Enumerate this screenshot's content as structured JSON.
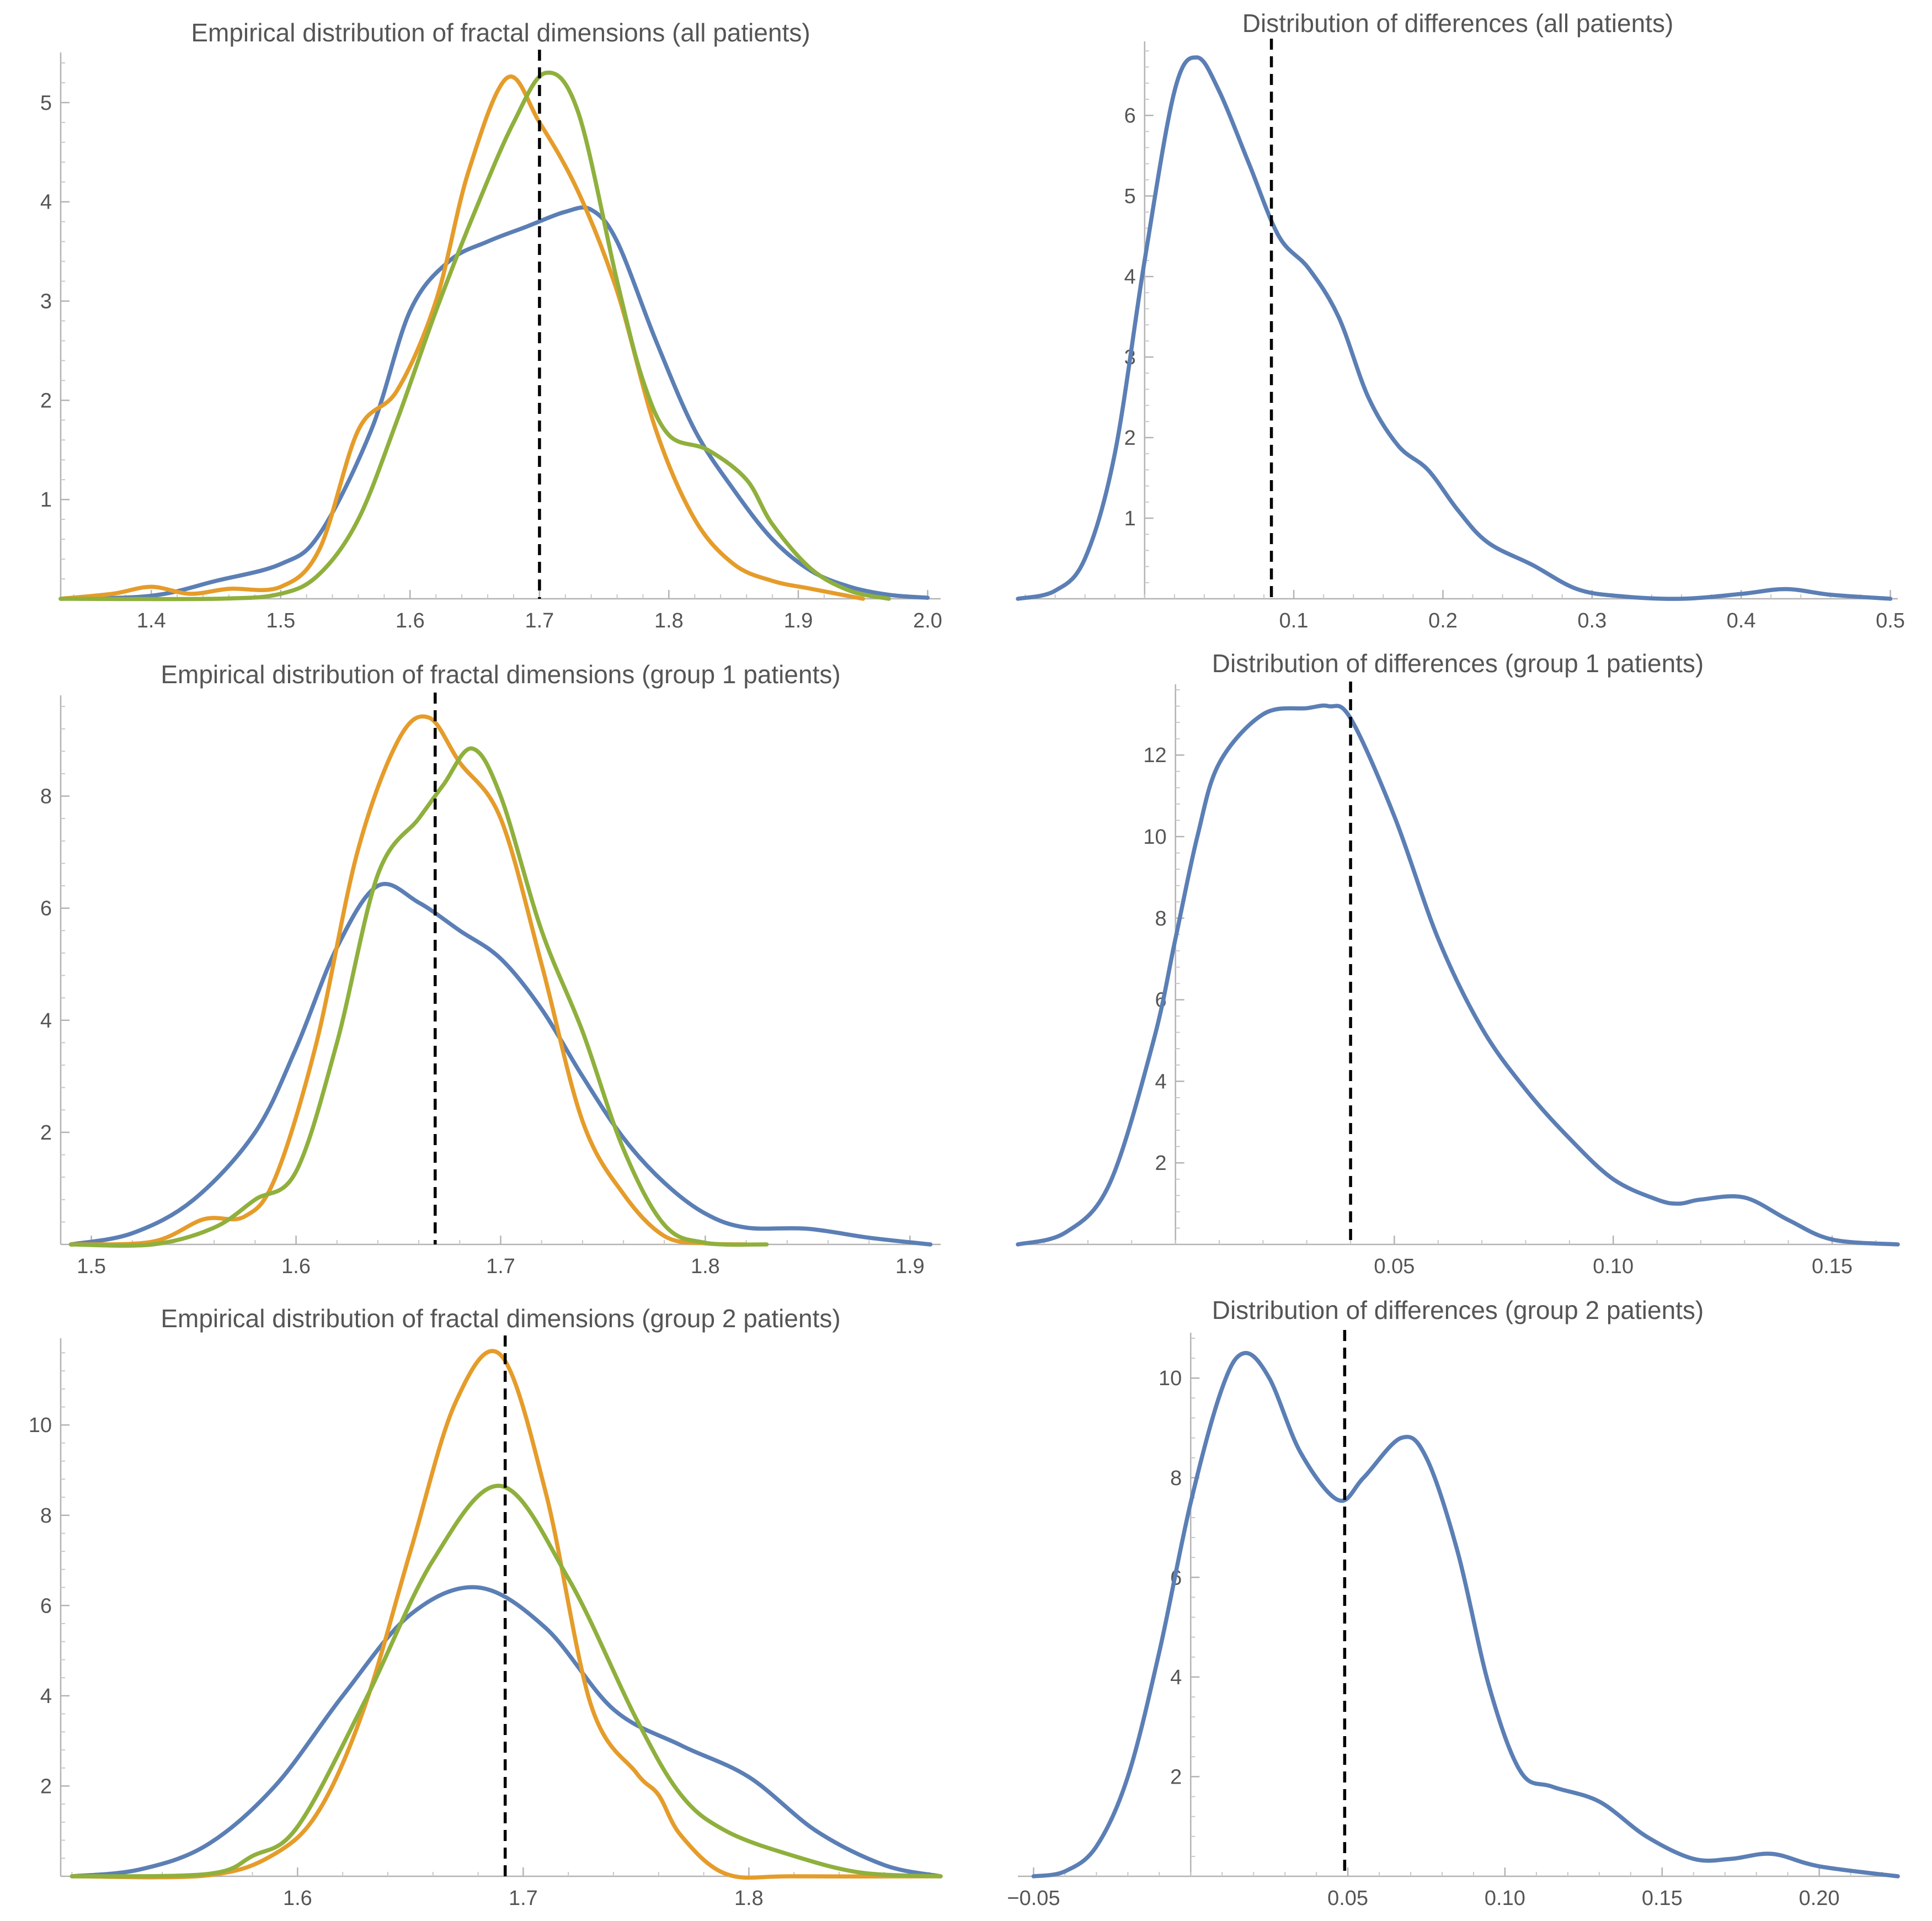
{
  "colors": {
    "blue": "#5b7fb5",
    "orange": "#e59c2a",
    "green": "#8fb03d",
    "reference": "#000000",
    "text": "#555555",
    "axis": "#b3b3b3"
  },
  "chart_data": [
    {
      "type": "line",
      "subtype": "density",
      "title": "Empirical distribution of fractal dimensions (all patients)",
      "xlabel": "",
      "ylabel": "",
      "xlim": [
        1.33,
        2.01
      ],
      "ylim": [
        0,
        5.45
      ],
      "x_ticks": [
        1.4,
        1.5,
        1.6,
        1.7,
        1.8,
        1.9,
        2.0
      ],
      "x_tick_labels": [
        "1.4",
        "1.5",
        "1.6",
        "1.7",
        "1.8",
        "1.9",
        "2.0"
      ],
      "y_ticks": [
        1,
        2,
        3,
        4,
        5
      ],
      "y_tick_labels": [
        "1",
        "2",
        "3",
        "4",
        "5"
      ],
      "reference_line": 1.7,
      "series": [
        {
          "name": "blue",
          "color": "blue",
          "x": [
            1.33,
            1.4,
            1.45,
            1.5,
            1.53,
            1.57,
            1.6,
            1.63,
            1.66,
            1.69,
            1.72,
            1.74,
            1.76,
            1.79,
            1.82,
            1.85,
            1.88,
            1.91,
            1.94,
            1.97,
            2.0
          ],
          "y": [
            0,
            0.03,
            0.18,
            0.35,
            0.65,
            1.7,
            2.9,
            3.4,
            3.6,
            3.75,
            3.9,
            3.92,
            3.6,
            2.6,
            1.7,
            1.1,
            0.6,
            0.28,
            0.12,
            0.04,
            0.01
          ]
        },
        {
          "name": "orange",
          "color": "orange",
          "x": [
            1.33,
            1.37,
            1.4,
            1.43,
            1.46,
            1.5,
            1.53,
            1.56,
            1.59,
            1.62,
            1.645,
            1.675,
            1.7,
            1.73,
            1.76,
            1.79,
            1.82,
            1.85,
            1.88,
            1.91,
            1.95
          ],
          "y": [
            0,
            0.05,
            0.12,
            0.05,
            0.1,
            0.12,
            0.5,
            1.7,
            2.1,
            3.0,
            4.3,
            5.25,
            4.8,
            4.1,
            3.1,
            1.7,
            0.8,
            0.35,
            0.18,
            0.1,
            0
          ]
        },
        {
          "name": "green",
          "color": "green",
          "x": [
            1.33,
            1.45,
            1.5,
            1.53,
            1.56,
            1.59,
            1.62,
            1.65,
            1.68,
            1.705,
            1.73,
            1.76,
            1.78,
            1.8,
            1.83,
            1.86,
            1.88,
            1.91,
            1.94,
            1.97
          ],
          "y": [
            0,
            0,
            0.05,
            0.25,
            0.8,
            1.8,
            2.9,
            3.9,
            4.8,
            5.3,
            4.9,
            3.2,
            2.2,
            1.65,
            1.5,
            1.2,
            0.75,
            0.3,
            0.08,
            0
          ]
        }
      ]
    },
    {
      "type": "line",
      "subtype": "density",
      "title": "Distribution of differences (all patients)",
      "xlabel": "",
      "ylabel": "",
      "xlim": [
        -0.085,
        0.505
      ],
      "ylim": [
        0,
        6.85
      ],
      "x_ticks": [
        0.1,
        0.2,
        0.3,
        0.4,
        0.5
      ],
      "x_tick_labels": [
        "0.1",
        "0.2",
        "0.3",
        "0.4",
        "0.5"
      ],
      "y_ticks": [
        1,
        2,
        3,
        4,
        5,
        6
      ],
      "y_tick_labels": [
        "1",
        "2",
        "3",
        "4",
        "5",
        "6"
      ],
      "reference_line": 0.085,
      "series": [
        {
          "name": "blue",
          "color": "blue",
          "x": [
            -0.085,
            -0.06,
            -0.04,
            -0.02,
            0.0,
            0.02,
            0.035,
            0.05,
            0.07,
            0.09,
            0.11,
            0.13,
            0.15,
            0.17,
            0.19,
            0.21,
            0.23,
            0.26,
            0.29,
            0.32,
            0.36,
            0.4,
            0.43,
            0.46,
            0.5
          ],
          "y": [
            0,
            0.1,
            0.5,
            1.8,
            4.2,
            6.3,
            6.72,
            6.3,
            5.4,
            4.5,
            4.1,
            3.5,
            2.5,
            1.9,
            1.6,
            1.1,
            0.7,
            0.42,
            0.12,
            0.03,
            0.0,
            0.06,
            0.12,
            0.05,
            0
          ]
        }
      ]
    },
    {
      "type": "line",
      "subtype": "density",
      "title": "Empirical distribution of fractal dimensions (group 1 patients)",
      "xlabel": "",
      "ylabel": "",
      "xlim": [
        1.485,
        1.915
      ],
      "ylim": [
        0,
        9.7
      ],
      "x_ticks": [
        1.5,
        1.6,
        1.7,
        1.8,
        1.9
      ],
      "x_tick_labels": [
        "1.5",
        "1.6",
        "1.7",
        "1.8",
        "1.9"
      ],
      "y_ticks": [
        2,
        4,
        6,
        8
      ],
      "y_tick_labels": [
        "2",
        "4",
        "6",
        "8"
      ],
      "reference_line": 1.668,
      "series": [
        {
          "name": "blue",
          "color": "blue",
          "x": [
            1.49,
            1.52,
            1.55,
            1.58,
            1.6,
            1.62,
            1.64,
            1.66,
            1.68,
            1.7,
            1.72,
            1.74,
            1.76,
            1.78,
            1.8,
            1.82,
            1.85,
            1.88,
            1.91
          ],
          "y": [
            0,
            0.2,
            0.8,
            2.0,
            3.5,
            5.3,
            6.4,
            6.1,
            5.6,
            5.1,
            4.2,
            3.0,
            1.9,
            1.1,
            0.55,
            0.3,
            0.28,
            0.12,
            0
          ]
        },
        {
          "name": "orange",
          "color": "orange",
          "x": [
            1.49,
            1.53,
            1.555,
            1.575,
            1.59,
            1.61,
            1.63,
            1.65,
            1.665,
            1.68,
            1.7,
            1.72,
            1.74,
            1.76,
            1.78,
            1.8,
            1.82
          ],
          "y": [
            0,
            0.05,
            0.45,
            0.5,
            1.2,
            3.6,
            7.0,
            9.0,
            9.4,
            8.6,
            7.6,
            5.0,
            2.2,
            0.9,
            0.15,
            0.02,
            0
          ]
        },
        {
          "name": "green",
          "color": "green",
          "x": [
            1.49,
            1.53,
            1.56,
            1.58,
            1.6,
            1.62,
            1.64,
            1.66,
            1.672,
            1.686,
            1.7,
            1.72,
            1.74,
            1.76,
            1.78,
            1.8,
            1.83
          ],
          "y": [
            0,
            0,
            0.3,
            0.8,
            1.3,
            3.6,
            6.6,
            7.6,
            8.2,
            8.85,
            8.0,
            5.6,
            3.8,
            1.7,
            0.35,
            0.03,
            0
          ]
        }
      ]
    },
    {
      "type": "line",
      "subtype": "density",
      "title": "Distribution of differences (group 1 patients)",
      "xlabel": "",
      "ylabel": "",
      "xlim": [
        -0.036,
        0.165
      ],
      "ylim": [
        0,
        13.6
      ],
      "x_ticks": [
        0.05,
        0.1,
        0.15
      ],
      "x_tick_labels": [
        "0.05",
        "0.10",
        "0.15"
      ],
      "y_ticks": [
        2,
        4,
        6,
        8,
        10,
        12
      ],
      "y_tick_labels": [
        "2",
        "4",
        "6",
        "8",
        "10",
        "12"
      ],
      "reference_line": 0.04,
      "series": [
        {
          "name": "blue",
          "color": "blue",
          "x": [
            -0.036,
            -0.025,
            -0.015,
            -0.005,
            0.0,
            0.005,
            0.01,
            0.02,
            0.03,
            0.035,
            0.04,
            0.05,
            0.06,
            0.07,
            0.08,
            0.09,
            0.1,
            0.11,
            0.115,
            0.12,
            0.13,
            0.14,
            0.15,
            0.165
          ],
          "y": [
            0,
            0.3,
            1.5,
            5.0,
            7.5,
            10.0,
            11.8,
            13.0,
            13.15,
            13.2,
            12.9,
            10.5,
            7.5,
            5.3,
            3.8,
            2.6,
            1.6,
            1.1,
            1.0,
            1.1,
            1.15,
            0.6,
            0.12,
            0
          ]
        }
      ]
    },
    {
      "type": "line",
      "subtype": "density",
      "title": "Empirical distribution of fractal dimensions (group 2 patients)",
      "xlabel": "",
      "ylabel": "",
      "xlim": [
        1.495,
        1.885
      ],
      "ylim": [
        0,
        11.8
      ],
      "x_ticks": [
        1.6,
        1.7,
        1.8
      ],
      "x_tick_labels": [
        "1.6",
        "1.7",
        "1.8"
      ],
      "y_ticks": [
        2,
        4,
        6,
        8,
        10
      ],
      "y_tick_labels": [
        "2",
        "4",
        "6",
        "8",
        "10"
      ],
      "reference_line": 1.692,
      "series": [
        {
          "name": "blue",
          "color": "blue",
          "x": [
            1.5,
            1.53,
            1.56,
            1.59,
            1.62,
            1.65,
            1.68,
            1.71,
            1.74,
            1.77,
            1.8,
            1.83,
            1.86,
            1.885
          ],
          "y": [
            0,
            0.15,
            0.7,
            2.0,
            4.0,
            5.8,
            6.4,
            5.5,
            3.7,
            2.9,
            2.2,
            1.0,
            0.25,
            0
          ]
        },
        {
          "name": "orange",
          "color": "orange",
          "x": [
            1.5,
            1.56,
            1.59,
            1.61,
            1.63,
            1.65,
            1.67,
            1.69,
            1.71,
            1.73,
            1.75,
            1.76,
            1.77,
            1.79,
            1.82,
            1.885
          ],
          "y": [
            0,
            0.02,
            0.5,
            1.5,
            3.8,
            7.2,
            10.5,
            11.55,
            8.5,
            3.8,
            2.3,
            1.8,
            0.9,
            0.05,
            0,
            0
          ]
        },
        {
          "name": "green",
          "color": "green",
          "x": [
            1.5,
            1.56,
            1.58,
            1.6,
            1.63,
            1.66,
            1.69,
            1.72,
            1.75,
            1.77,
            1.79,
            1.82,
            1.85,
            1.885
          ],
          "y": [
            0,
            0.05,
            0.45,
            1.1,
            3.9,
            7.0,
            8.65,
            6.6,
            3.5,
            1.8,
            1.0,
            0.45,
            0.08,
            0
          ]
        }
      ]
    },
    {
      "type": "line",
      "subtype": "density",
      "title": "Distribution of differences (group 2 patients)",
      "xlabel": "",
      "ylabel": "",
      "xlim": [
        -0.055,
        0.225
      ],
      "ylim": [
        0,
        10.8
      ],
      "x_ticks": [
        -0.05,
        0.05,
        0.1,
        0.15,
        0.2
      ],
      "x_tick_labels": [
        "-0.05",
        "0.05",
        "0.10",
        "0.15",
        "0.20"
      ],
      "y_ticks": [
        2,
        4,
        6,
        8,
        10
      ],
      "y_tick_labels": [
        "2",
        "4",
        "6",
        "8",
        "10"
      ],
      "reference_line": 0.049,
      "series": [
        {
          "name": "blue",
          "color": "blue",
          "x": [
            -0.05,
            -0.04,
            -0.03,
            -0.02,
            -0.01,
            0.0,
            0.01,
            0.017,
            0.025,
            0.035,
            0.047,
            0.055,
            0.067,
            0.075,
            0.085,
            0.095,
            0.105,
            0.115,
            0.13,
            0.145,
            0.16,
            0.172,
            0.185,
            0.2,
            0.225
          ],
          "y": [
            0,
            0.1,
            0.6,
            2.0,
            4.5,
            7.5,
            9.8,
            10.5,
            10.0,
            8.5,
            7.55,
            8.0,
            8.8,
            8.4,
            6.5,
            3.8,
            2.1,
            1.8,
            1.5,
            0.8,
            0.35,
            0.35,
            0.45,
            0.2,
            0
          ]
        }
      ]
    }
  ]
}
